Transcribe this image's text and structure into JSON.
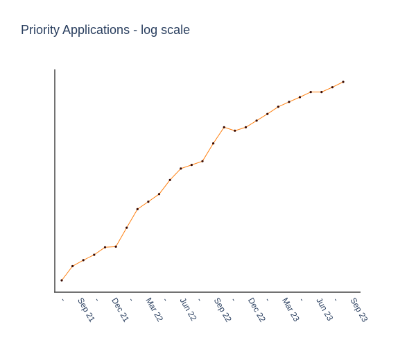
{
  "chart_data": {
    "type": "line",
    "title": "Priority Applications - log scale",
    "xlabel": "",
    "ylabel": "",
    "y_scale": "log",
    "y_tick_labels_shown": false,
    "grid": false,
    "legend": "none",
    "x_tick_labels": [
      "",
      "Sep 21",
      "",
      "Dec 21",
      "",
      "Mar 22",
      "",
      "Jun 22",
      "",
      "Sep 22",
      "",
      "Dec 22",
      "",
      "Mar 23",
      "",
      "Jun 23",
      "",
      "Sep 23"
    ],
    "x": [
      "2021-07",
      "2021-08",
      "2021-09",
      "2021-10",
      "2021-11",
      "2021-12",
      "2022-01",
      "2022-02",
      "2022-03",
      "2022-04",
      "2022-05",
      "2022-06",
      "2022-07",
      "2022-08",
      "2022-09",
      "2022-10",
      "2022-11",
      "2022-12",
      "2023-01",
      "2023-02",
      "2023-03",
      "2023-04",
      "2023-05",
      "2023-06",
      "2023-07",
      "2023-08",
      "2023-09"
    ],
    "series": [
      {
        "name": "",
        "color": "#ff7f0e",
        "marker_color": "#3a0a00",
        "values": [
          0.0,
          0.066,
          0.094,
          0.119,
          0.154,
          0.157,
          0.245,
          0.331,
          0.366,
          0.401,
          0.467,
          0.52,
          0.537,
          0.554,
          0.637,
          0.712,
          0.696,
          0.712,
          0.743,
          0.774,
          0.807,
          0.83,
          0.852,
          0.876,
          0.876,
          0.898,
          0.923
        ]
      }
    ],
    "y_note": "values expressed as position on the log axis (0 = axis bottom, 1 = axis top); axis is unlabelled"
  }
}
